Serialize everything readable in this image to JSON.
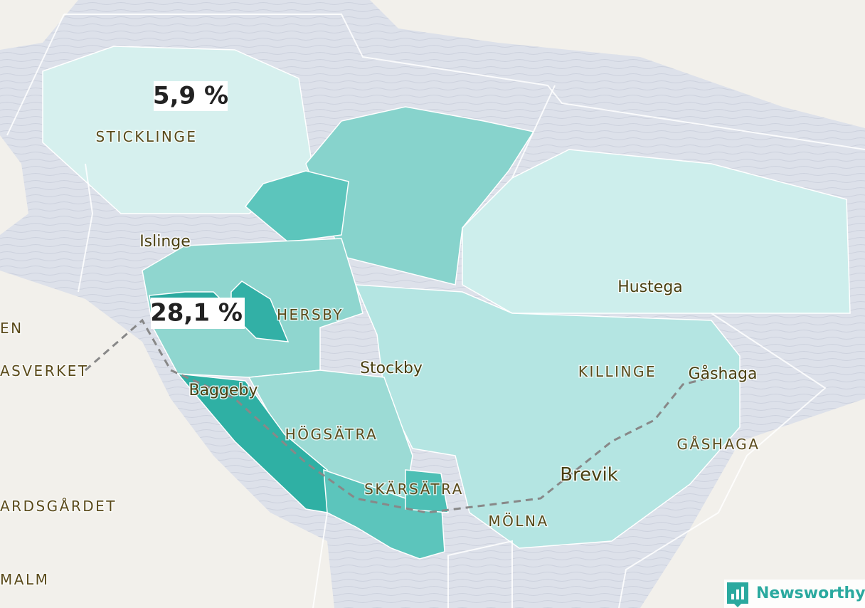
{
  "annotations": [
    "5,9 %",
    "28,1 %"
  ],
  "places": [
    "STICKLINGE",
    "Islinge",
    "HERSBY",
    "Stockby",
    "Baggeby",
    "HÖGSÄTRA",
    "SKÄRSÄTRA",
    "MÖLNA",
    "Brevik",
    "KILLINGE",
    "Gåshaga",
    "GÅSHAGA",
    "Hustega",
    "EN",
    "ASVERKET",
    "ARDSGÅRDET",
    "MALM"
  ],
  "brand": "Newsworthy"
}
